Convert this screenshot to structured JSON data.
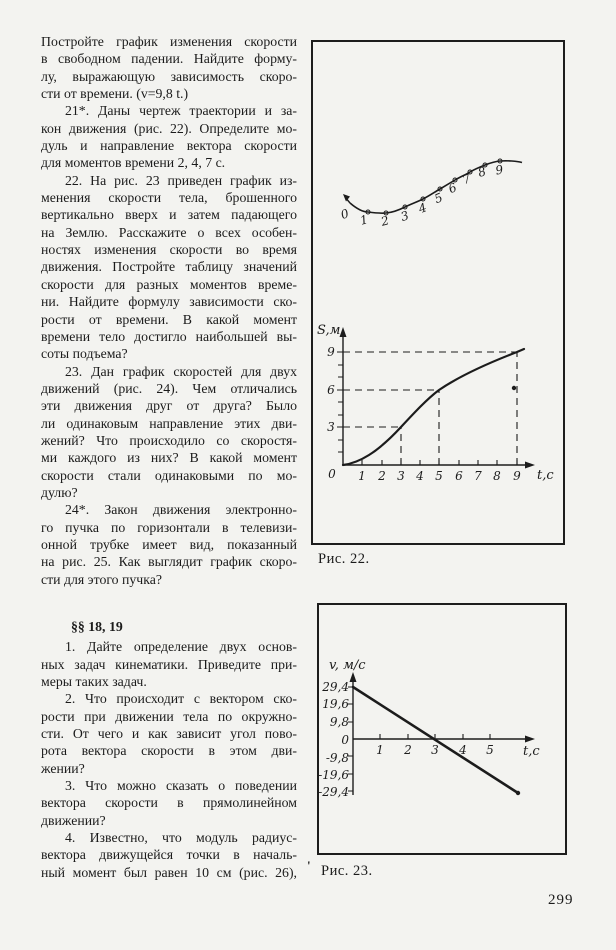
{
  "page": {
    "number": "299"
  },
  "left_column": {
    "lines": [
      {
        "text": "Постройте график изменения скорости",
        "ind": false,
        "just": true
      },
      {
        "text": "в свободном падении. Найдите форму-",
        "ind": false,
        "just": true
      },
      {
        "text": "лу, выражающую зависимость скоро-",
        "ind": false,
        "just": true
      },
      {
        "text": "сти от времени. (v=9,8 t.)",
        "ind": false,
        "just": false
      },
      {
        "text": "21*. Даны чертеж траектории и за-",
        "ind": true,
        "just": true
      },
      {
        "text": "кон движения (рис. 22). Определите мо-",
        "ind": false,
        "just": true
      },
      {
        "text": "дуль и направление вектора скорости",
        "ind": false,
        "just": true
      },
      {
        "text": "для моментов времени 2, 4, 7 с.",
        "ind": false,
        "just": false
      },
      {
        "text": "22. На рис. 23 приведен график из-",
        "ind": true,
        "just": true
      },
      {
        "text": "менения скорости тела, брошенного",
        "ind": false,
        "just": true
      },
      {
        "text": "вертикально вверх и затем падающего",
        "ind": false,
        "just": true
      },
      {
        "text": "на Землю. Расскажите о всех особен-",
        "ind": false,
        "just": true
      },
      {
        "text": "ностях изменения скорости во время",
        "ind": false,
        "just": true
      },
      {
        "text": "движения. Постройте таблицу значений",
        "ind": false,
        "just": true
      },
      {
        "text": "скорости для разных моментов време-",
        "ind": false,
        "just": true
      },
      {
        "text": "ни. Найдите формулу зависимости ско-",
        "ind": false,
        "just": true
      },
      {
        "text": "рости от времени. В какой момент",
        "ind": false,
        "just": true
      },
      {
        "text": "времени тело достигло наибольшей вы-",
        "ind": false,
        "just": true
      },
      {
        "text": "соты подъема?",
        "ind": false,
        "just": false
      },
      {
        "text": "23. Дан график скоростей для двух",
        "ind": true,
        "just": true
      },
      {
        "text": "движений (рис. 24). Чем отличались",
        "ind": false,
        "just": true
      },
      {
        "text": "эти движения друг от друга? Было",
        "ind": false,
        "just": true
      },
      {
        "text": "ли одинаковым направление этих дви-",
        "ind": false,
        "just": true
      },
      {
        "text": "жений? Что происходило со скоростя-",
        "ind": false,
        "just": true
      },
      {
        "text": "ми каждого из них? В какой момент",
        "ind": false,
        "just": true
      },
      {
        "text": "скорости стали одинаковыми по мо-",
        "ind": false,
        "just": true
      },
      {
        "text": "дулю?",
        "ind": false,
        "just": false
      },
      {
        "text": "24*. Закон движения электронно-",
        "ind": true,
        "just": true
      },
      {
        "text": "го пучка по горизонтали в телевизи-",
        "ind": false,
        "just": true
      },
      {
        "text": "онной трубке имеет вид, показанный",
        "ind": false,
        "just": true
      },
      {
        "text": "на рис. 25. Как выглядит график скоро-",
        "ind": false,
        "just": true
      },
      {
        "text": "сти для этого пучка?",
        "ind": false,
        "just": false
      },
      {
        "text": "§§ 18, 19",
        "ind": false,
        "just": false,
        "bold": true,
        "gap": true
      },
      {
        "text": "1. Дайте определение двух основ-",
        "ind": true,
        "just": true
      },
      {
        "text": "ных задач кинематики. Приведите при-",
        "ind": false,
        "just": true
      },
      {
        "text": "меры таких задач.",
        "ind": false,
        "just": false
      },
      {
        "text": "2. Что происходит с вектором ско-",
        "ind": true,
        "just": true
      },
      {
        "text": "рости при движении тела по окружно-",
        "ind": false,
        "just": true
      },
      {
        "text": "сти. От чего и как зависит угол пово-",
        "ind": false,
        "just": true
      },
      {
        "text": "рота вектора скорости в этом дви-",
        "ind": false,
        "just": true
      },
      {
        "text": "жении?",
        "ind": false,
        "just": false
      },
      {
        "text": "3. Что можно сказать о поведении",
        "ind": true,
        "just": true
      },
      {
        "text": "вектора скорости в прямолинейном",
        "ind": false,
        "just": true
      },
      {
        "text": "движении?",
        "ind": false,
        "just": false
      },
      {
        "text": "4. Известно, что модуль радиус-",
        "ind": true,
        "just": true
      },
      {
        "text": "вектора движущейся точки в началь-",
        "ind": false,
        "just": true
      },
      {
        "text": "ный момент был равен 10 см (рис. 26),",
        "ind": false,
        "just": true
      }
    ]
  },
  "figure22": {
    "caption": "Рис. 22.",
    "trajectory": {
      "point_labels": [
        "0",
        "1",
        "2",
        "3",
        "4",
        "5",
        "6",
        "7",
        "8",
        "9"
      ]
    },
    "graph": {
      "y_axis_label": "S,м",
      "x_axis_label": "t,с",
      "origin_label": "0",
      "x_ticks": [
        "1",
        "2",
        "3",
        "4",
        "5",
        "6",
        "7",
        "8",
        "9"
      ],
      "y_ticks": [
        "3",
        "6",
        "9"
      ]
    }
  },
  "figure23": {
    "caption": "Рис. 23.",
    "caption_mark": "'",
    "graph": {
      "y_axis_label": "v, м/с",
      "x_axis_label": "t,с",
      "x_ticks": [
        "1",
        "2",
        "3",
        "4",
        "5"
      ],
      "y_ticks": [
        "29,4",
        "19,6",
        "9,8",
        "0",
        "-9,8",
        "-19,6",
        "-29,4"
      ]
    }
  },
  "chart_data": [
    {
      "id": "fig22-trajectory",
      "type": "scatter",
      "title": "Чертеж траектории с отметками моментов времени (рис. 22, верх)",
      "point_labels": [
        "0",
        "1",
        "2",
        "3",
        "4",
        "5",
        "6",
        "7",
        "8",
        "9"
      ],
      "shape": "curve dips slightly from point 0 to minimum near points 1-2, then rises and flattens toward point 9; small arrow at start"
    },
    {
      "id": "fig22-s-t",
      "type": "line",
      "title": "Закон движения S(t) (рис. 22, низ)",
      "xlabel": "t,с",
      "ylabel": "S,м",
      "x": [
        0,
        1,
        2,
        3,
        4,
        5,
        6,
        7,
        8,
        9
      ],
      "y": [
        0,
        0.8,
        1.8,
        3,
        4.5,
        6,
        6.9,
        7.7,
        8.4,
        9
      ],
      "x_ticks": [
        1,
        2,
        3,
        4,
        5,
        6,
        7,
        8,
        9
      ],
      "y_ticks": [
        3,
        6,
        9
      ],
      "xlim": [
        0,
        10
      ],
      "ylim": [
        0,
        10
      ],
      "grid": false,
      "dashed_guides": [
        {
          "t": 3,
          "S": 3
        },
        {
          "t": 5,
          "S": 6
        },
        {
          "t": 9,
          "S": 9
        }
      ]
    },
    {
      "id": "fig23-v-t",
      "type": "line",
      "title": "График скорости v(t) (рис. 23)",
      "xlabel": "t,с",
      "ylabel": "v, м/с",
      "x": [
        0,
        3,
        6
      ],
      "y": [
        29.4,
        0,
        -29.4
      ],
      "x_ticks": [
        1,
        2,
        3,
        4,
        5
      ],
      "y_ticks": [
        29.4,
        19.6,
        9.8,
        0,
        -9.8,
        -19.6,
        -29.4
      ],
      "xlim": [
        0,
        6.5
      ],
      "ylim": [
        -29.4,
        29.4
      ],
      "grid": false
    }
  ]
}
